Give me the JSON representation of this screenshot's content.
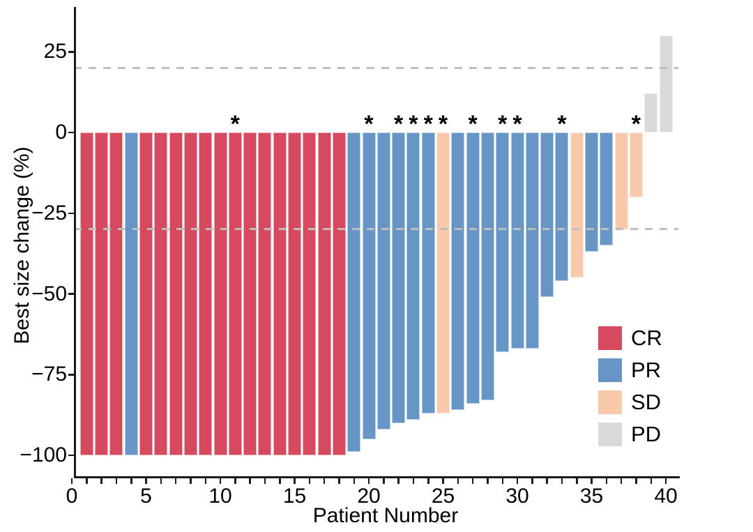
{
  "chart_data": {
    "type": "bar",
    "subtype": "waterfall-best-response",
    "title": "",
    "xlabel": "Patient Number",
    "ylabel": "Best size change (%)",
    "x_range": [
      0,
      41
    ],
    "ylim": [
      -105,
      38
    ],
    "x_tick_labels": [
      {
        "value": 0,
        "label": "0"
      },
      {
        "value": 5,
        "label": "5"
      },
      {
        "value": 10,
        "label": "10"
      },
      {
        "value": 15,
        "label": "15"
      },
      {
        "value": 20,
        "label": "20"
      },
      {
        "value": 25,
        "label": "25"
      },
      {
        "value": 30,
        "label": "30"
      },
      {
        "value": 35,
        "label": "35"
      },
      {
        "value": 40,
        "label": "40"
      }
    ],
    "x_minor_tick_every": 1,
    "y_tick_labels": [
      {
        "value": 25,
        "label": "25"
      },
      {
        "value": 0,
        "label": "0"
      },
      {
        "value": -25,
        "label": "−25"
      },
      {
        "value": -50,
        "label": "−50"
      },
      {
        "value": -75,
        "label": "−75"
      },
      {
        "value": -100,
        "label": "−100"
      }
    ],
    "reference_lines": [
      {
        "value": 20,
        "style": "dashed",
        "color": "#BEBEBE"
      },
      {
        "value": -30,
        "style": "dashed",
        "color": "#BEBEBE"
      }
    ],
    "group_colors": {
      "CR": "#D6495F",
      "PR": "#6795C5",
      "SD": "#F9C9AC",
      "PD": "#D9D9D9"
    },
    "annotation_glyph": "*",
    "patients": [
      {
        "patient": 1,
        "value": -100,
        "group": "CR",
        "star": false
      },
      {
        "patient": 2,
        "value": -100,
        "group": "CR",
        "star": false
      },
      {
        "patient": 3,
        "value": -100,
        "group": "CR",
        "star": false
      },
      {
        "patient": 4,
        "value": -100,
        "group": "PR",
        "star": false
      },
      {
        "patient": 5,
        "value": -100,
        "group": "CR",
        "star": false
      },
      {
        "patient": 6,
        "value": -100,
        "group": "CR",
        "star": false
      },
      {
        "patient": 7,
        "value": -100,
        "group": "CR",
        "star": false
      },
      {
        "patient": 8,
        "value": -100,
        "group": "CR",
        "star": false
      },
      {
        "patient": 9,
        "value": -100,
        "group": "CR",
        "star": false
      },
      {
        "patient": 10,
        "value": -100,
        "group": "CR",
        "star": false
      },
      {
        "patient": 11,
        "value": -100,
        "group": "CR",
        "star": true
      },
      {
        "patient": 12,
        "value": -100,
        "group": "CR",
        "star": false
      },
      {
        "patient": 13,
        "value": -100,
        "group": "CR",
        "star": false
      },
      {
        "patient": 14,
        "value": -100,
        "group": "CR",
        "star": false
      },
      {
        "patient": 15,
        "value": -100,
        "group": "CR",
        "star": false
      },
      {
        "patient": 16,
        "value": -100,
        "group": "CR",
        "star": false
      },
      {
        "patient": 17,
        "value": -100,
        "group": "CR",
        "star": false
      },
      {
        "patient": 18,
        "value": -100,
        "group": "CR",
        "star": false
      },
      {
        "patient": 19,
        "value": -99,
        "group": "PR",
        "star": false
      },
      {
        "patient": 20,
        "value": -95,
        "group": "PR",
        "star": true
      },
      {
        "patient": 21,
        "value": -92,
        "group": "PR",
        "star": false
      },
      {
        "patient": 22,
        "value": -90,
        "group": "PR",
        "star": true
      },
      {
        "patient": 23,
        "value": -89,
        "group": "PR",
        "star": true
      },
      {
        "patient": 24,
        "value": -87,
        "group": "PR",
        "star": true
      },
      {
        "patient": 25,
        "value": -87,
        "group": "SD",
        "star": true
      },
      {
        "patient": 26,
        "value": -86,
        "group": "PR",
        "star": false
      },
      {
        "patient": 27,
        "value": -84,
        "group": "PR",
        "star": true
      },
      {
        "patient": 28,
        "value": -83,
        "group": "PR",
        "star": false
      },
      {
        "patient": 29,
        "value": -68,
        "group": "PR",
        "star": true
      },
      {
        "patient": 30,
        "value": -67,
        "group": "PR",
        "star": true
      },
      {
        "patient": 31,
        "value": -67,
        "group": "PR",
        "star": false
      },
      {
        "patient": 32,
        "value": -51,
        "group": "PR",
        "star": false
      },
      {
        "patient": 33,
        "value": -46,
        "group": "PR",
        "star": true
      },
      {
        "patient": 34,
        "value": -45,
        "group": "SD",
        "star": false
      },
      {
        "patient": 35,
        "value": -37,
        "group": "PR",
        "star": false
      },
      {
        "patient": 36,
        "value": -35,
        "group": "PR",
        "star": false
      },
      {
        "patient": 37,
        "value": -30,
        "group": "SD",
        "star": false
      },
      {
        "patient": 38,
        "value": -20,
        "group": "SD",
        "star": true
      },
      {
        "patient": 39,
        "value": 12,
        "group": "PD",
        "star": false
      },
      {
        "patient": 40,
        "value": 30,
        "group": "PD",
        "star": false
      }
    ],
    "legend": {
      "position": "inside-right",
      "items": [
        {
          "label": "CR",
          "color": "#D6495F"
        },
        {
          "label": "PR",
          "color": "#6795C5"
        },
        {
          "label": "SD",
          "color": "#F9C9AC"
        },
        {
          "label": "PD",
          "color": "#D9D9D9"
        }
      ]
    }
  }
}
